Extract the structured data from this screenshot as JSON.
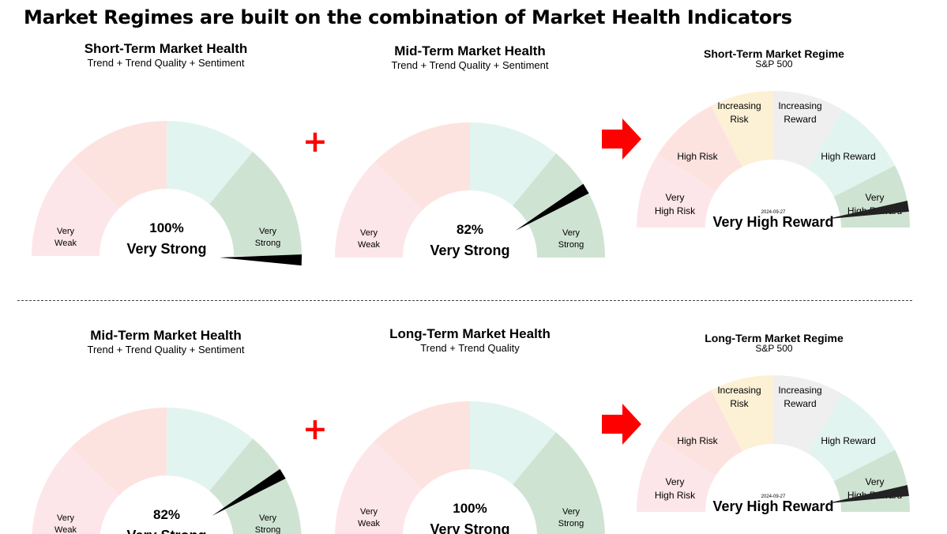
{
  "page": {
    "title": "Market Regimes are built on the combination of Market Health Indicators",
    "plus_symbol": "+"
  },
  "colors": {
    "very_weak": "#fde6e9",
    "weak": "#fde3df",
    "strong": "#e2f4ef",
    "very_strong": "#cfe3d2",
    "very_high_risk": "#fde6e9",
    "high_risk": "#fde3df",
    "increasing_risk": "#fdf1d5",
    "increasing_reward": "#efefef",
    "high_reward": "#e2f4ef",
    "very_high_reward": "#cfe3d2",
    "needle": "#000000",
    "arrow": "#ff0000"
  },
  "gauges": {
    "top_short_health": {
      "title": "Short-Term Market Health",
      "subtitle": "Trend + Trend Quality + Sentiment",
      "value_label": "100%",
      "status": "Very Strong",
      "left_label": [
        "Very",
        "Weak"
      ],
      "right_label": [
        "Very",
        "Strong"
      ]
    },
    "top_mid_health": {
      "title": "Mid-Term Market Health",
      "subtitle": "Trend + Trend Quality + Sentiment",
      "value_label": "82%",
      "status": "Very Strong",
      "left_label": [
        "Very",
        "Weak"
      ],
      "right_label": [
        "Very",
        "Strong"
      ]
    },
    "top_regime": {
      "title": "Short-Term Market Regime",
      "subtitle": "S&P 500",
      "status": "Very High Reward",
      "date": "2024-09-27",
      "zone_labels": {
        "very_high_risk": [
          "Very",
          "High Risk"
        ],
        "high_risk": [
          "High Risk"
        ],
        "increasing_risk": [
          "Increasing",
          "Risk"
        ],
        "increasing_reward": [
          "Increasing",
          "Reward"
        ],
        "high_reward": [
          "High Reward"
        ],
        "very_high_reward": [
          "Very",
          "High Reward"
        ]
      }
    },
    "bottom_mid_health": {
      "title": "Mid-Term Market Health",
      "subtitle": "Trend + Trend Quality + Sentiment",
      "value_label": "82%",
      "status": "Very Strong",
      "left_label": [
        "Very",
        "Weak"
      ],
      "right_label": [
        "Very",
        "Strong"
      ]
    },
    "bottom_long_health": {
      "title": "Long-Term Market Health",
      "subtitle": "Trend + Trend Quality",
      "value_label": "100%",
      "status": "Very Strong",
      "left_label": [
        "Very",
        "Weak"
      ],
      "right_label": [
        "Very",
        "Strong"
      ]
    },
    "bottom_regime": {
      "title": "Long-Term Market Regime",
      "subtitle": "S&P 500",
      "status": "Very High Reward",
      "date": "2024-09-27",
      "zone_labels": {
        "very_high_risk": [
          "Very",
          "High Risk"
        ],
        "high_risk": [
          "High Risk"
        ],
        "increasing_risk": [
          "Increasing",
          "Risk"
        ],
        "increasing_reward": [
          "Increasing",
          "Reward"
        ],
        "high_reward": [
          "High Reward"
        ],
        "very_high_reward": [
          "Very",
          "High Reward"
        ]
      }
    }
  },
  "chart_data": [
    {
      "type": "gauge",
      "title": "Short-Term Market Health",
      "subtitle": "Trend + Trend Quality + Sentiment",
      "range": [
        0,
        100
      ],
      "zones": [
        "Very Weak",
        "Weak",
        "Strong",
        "Very Strong"
      ],
      "value": 100,
      "value_label": "100%",
      "status": "Very Strong"
    },
    {
      "type": "gauge",
      "title": "Mid-Term Market Health",
      "subtitle": "Trend + Trend Quality + Sentiment",
      "range": [
        0,
        100
      ],
      "zones": [
        "Very Weak",
        "Weak",
        "Strong",
        "Very Strong"
      ],
      "value": 82,
      "value_label": "82%",
      "status": "Very Strong"
    },
    {
      "type": "gauge",
      "title": "Short-Term Market Regime",
      "subtitle": "S&P 500",
      "zones": [
        "Very High Risk",
        "High Risk",
        "Increasing Risk",
        "Increasing Reward",
        "High Reward",
        "Very High Reward"
      ],
      "value": 0.95,
      "status": "Very High Reward",
      "date": "2024-09-27"
    },
    {
      "type": "gauge",
      "title": "Mid-Term Market Health",
      "subtitle": "Trend + Trend Quality + Sentiment",
      "range": [
        0,
        100
      ],
      "zones": [
        "Very Weak",
        "Weak",
        "Strong",
        "Very Strong"
      ],
      "value": 82,
      "value_label": "82%",
      "status": "Very Strong"
    },
    {
      "type": "gauge",
      "title": "Long-Term Market Health",
      "subtitle": "Trend + Trend Quality",
      "range": [
        0,
        100
      ],
      "zones": [
        "Very Weak",
        "Weak",
        "Strong",
        "Very Strong"
      ],
      "value": 100,
      "value_label": "100%",
      "status": "Very Strong"
    },
    {
      "type": "gauge",
      "title": "Long-Term Market Regime",
      "subtitle": "S&P 500",
      "zones": [
        "Very High Risk",
        "High Risk",
        "Increasing Risk",
        "Increasing Reward",
        "High Reward",
        "Very High Reward"
      ],
      "value": 0.95,
      "status": "Very High Reward",
      "date": "2024-09-27"
    }
  ]
}
